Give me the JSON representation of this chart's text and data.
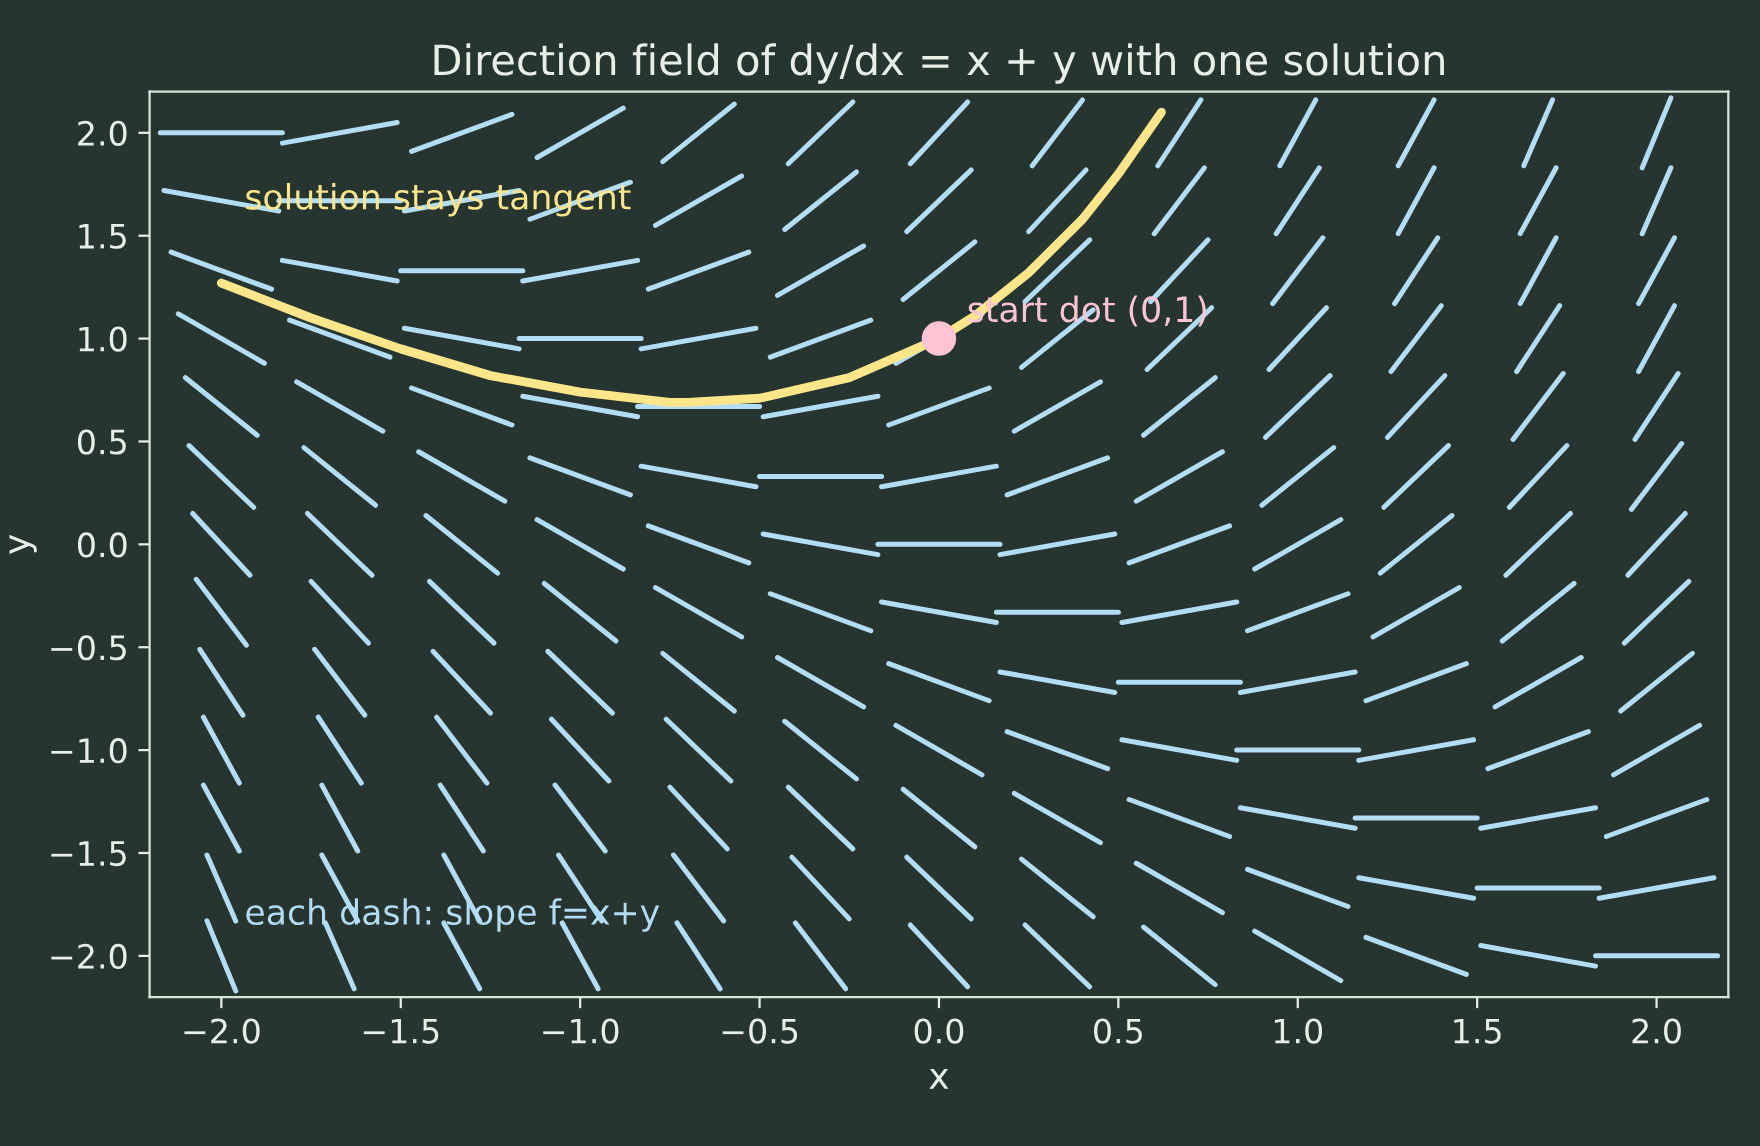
{
  "chart_data": {
    "type": "line",
    "title": "Direction field of dy/dx = x + y with one solution",
    "xlabel": "x",
    "ylabel": "y",
    "xlim": [
      -2.2,
      2.2
    ],
    "ylim": [
      -2.2,
      2.2
    ],
    "xticks": [
      {
        "value": -2,
        "label": "−2.0"
      },
      {
        "value": -1.5,
        "label": "−1.5"
      },
      {
        "value": -1,
        "label": "−1.0"
      },
      {
        "value": -0.5,
        "label": "−0.5"
      },
      {
        "value": 0,
        "label": "0.0"
      },
      {
        "value": 0.5,
        "label": "0.5"
      },
      {
        "value": 1,
        "label": "1.0"
      },
      {
        "value": 1.5,
        "label": "1.5"
      },
      {
        "value": 2,
        "label": "2.0"
      }
    ],
    "yticks": [
      {
        "value": -2,
        "label": "−2.0"
      },
      {
        "value": -1.5,
        "label": "−1.5"
      },
      {
        "value": -1,
        "label": "−1.0"
      },
      {
        "value": -0.5,
        "label": "−0.5"
      },
      {
        "value": 0,
        "label": "0.0"
      },
      {
        "value": 0.5,
        "label": "0.5"
      },
      {
        "value": 1,
        "label": "1.0"
      },
      {
        "value": 1.5,
        "label": "1.5"
      },
      {
        "value": 2,
        "label": "2.0"
      }
    ],
    "grid": false,
    "legend": false,
    "series": [
      {
        "color": "#b3dcf5",
        "x": [
          -2.04,
          -1.96
        ],
        "values": [
          -1.83,
          -2.17
        ]
      },
      {
        "color": "#b3dcf5",
        "x": [
          -2.04,
          -1.96
        ],
        "values": [
          -1.51,
          -1.83
        ]
      },
      {
        "color": "#b3dcf5",
        "x": [
          -2.05,
          -1.95
        ],
        "values": [
          -1.17,
          -1.49
        ]
      },
      {
        "color": "#b3dcf5",
        "x": [
          -2.05,
          -1.95
        ],
        "values": [
          -0.84,
          -1.16
        ]
      },
      {
        "color": "#b3dcf5",
        "x": [
          -2.06,
          -1.94
        ],
        "values": [
          -0.51,
          -0.83
        ]
      },
      {
        "color": "#b3dcf5",
        "x": [
          -2.07,
          -1.93
        ],
        "values": [
          -0.17,
          -0.49
        ]
      },
      {
        "color": "#b3dcf5",
        "x": [
          -2.08,
          -1.92
        ],
        "values": [
          0.15,
          -0.15
        ]
      },
      {
        "color": "#b3dcf5",
        "x": [
          -2.09,
          -1.91
        ],
        "values": [
          0.48,
          0.18
        ]
      },
      {
        "color": "#b3dcf5",
        "x": [
          -2.1,
          -1.9
        ],
        "values": [
          0.81,
          0.53
        ]
      },
      {
        "color": "#b3dcf5",
        "x": [
          -2.12,
          -1.88
        ],
        "values": [
          1.12,
          0.88
        ]
      },
      {
        "color": "#b3dcf5",
        "x": [
          -2.14,
          -1.86
        ],
        "values": [
          1.42,
          1.24
        ]
      },
      {
        "color": "#b3dcf5",
        "x": [
          -2.16,
          -1.84
        ],
        "values": [
          1.72,
          1.62
        ]
      },
      {
        "color": "#b3dcf5",
        "x": [
          -2.17,
          -1.83
        ],
        "values": [
          2,
          2
        ]
      },
      {
        "color": "#b3dcf5",
        "x": [
          -1.71,
          -1.63
        ],
        "values": [
          -1.84,
          -2.16
        ]
      },
      {
        "color": "#b3dcf5",
        "x": [
          -1.72,
          -1.62
        ],
        "values": [
          -1.51,
          -1.83
        ]
      },
      {
        "color": "#b3dcf5",
        "x": [
          -1.72,
          -1.62
        ],
        "values": [
          -1.17,
          -1.49
        ]
      },
      {
        "color": "#b3dcf5",
        "x": [
          -1.73,
          -1.61
        ],
        "values": [
          -0.84,
          -1.16
        ]
      },
      {
        "color": "#b3dcf5",
        "x": [
          -1.74,
          -1.6
        ],
        "values": [
          -0.51,
          -0.83
        ]
      },
      {
        "color": "#b3dcf5",
        "x": [
          -1.75,
          -1.59
        ],
        "values": [
          -0.18,
          -0.48
        ]
      },
      {
        "color": "#b3dcf5",
        "x": [
          -1.76,
          -1.58
        ],
        "values": [
          0.15,
          -0.15
        ]
      },
      {
        "color": "#b3dcf5",
        "x": [
          -1.77,
          -1.57
        ],
        "values": [
          0.47,
          0.19
        ]
      },
      {
        "color": "#b3dcf5",
        "x": [
          -1.79,
          -1.55
        ],
        "values": [
          0.79,
          0.55
        ]
      },
      {
        "color": "#b3dcf5",
        "x": [
          -1.81,
          -1.53
        ],
        "values": [
          1.09,
          0.91
        ]
      },
      {
        "color": "#b3dcf5",
        "x": [
          -1.83,
          -1.51
        ],
        "values": [
          1.38,
          1.28
        ]
      },
      {
        "color": "#b3dcf5",
        "x": [
          -1.84,
          -1.5
        ],
        "values": [
          1.67,
          1.67
        ]
      },
      {
        "color": "#b3dcf5",
        "x": [
          -1.83,
          -1.51
        ],
        "values": [
          1.95,
          2.05
        ]
      },
      {
        "color": "#b3dcf5",
        "x": [
          -1.38,
          -1.28
        ],
        "values": [
          -1.84,
          -2.16
        ]
      },
      {
        "color": "#b3dcf5",
        "x": [
          -1.38,
          -1.28
        ],
        "values": [
          -1.51,
          -1.83
        ]
      },
      {
        "color": "#b3dcf5",
        "x": [
          -1.39,
          -1.27
        ],
        "values": [
          -1.17,
          -1.49
        ]
      },
      {
        "color": "#b3dcf5",
        "x": [
          -1.4,
          -1.26
        ],
        "values": [
          -0.84,
          -1.16
        ]
      },
      {
        "color": "#b3dcf5",
        "x": [
          -1.41,
          -1.25
        ],
        "values": [
          -0.52,
          -0.82
        ]
      },
      {
        "color": "#b3dcf5",
        "x": [
          -1.42,
          -1.24
        ],
        "values": [
          -0.18,
          -0.48
        ]
      },
      {
        "color": "#b3dcf5",
        "x": [
          -1.43,
          -1.23
        ],
        "values": [
          0.14,
          -0.14
        ]
      },
      {
        "color": "#b3dcf5",
        "x": [
          -1.45,
          -1.21
        ],
        "values": [
          0.45,
          0.21
        ]
      },
      {
        "color": "#b3dcf5",
        "x": [
          -1.47,
          -1.19
        ],
        "values": [
          0.76,
          0.58
        ]
      },
      {
        "color": "#b3dcf5",
        "x": [
          -1.49,
          -1.17
        ],
        "values": [
          1.05,
          0.95
        ]
      },
      {
        "color": "#b3dcf5",
        "x": [
          -1.5,
          -1.16
        ],
        "values": [
          1.33,
          1.33
        ]
      },
      {
        "color": "#b3dcf5",
        "x": [
          -1.49,
          -1.17
        ],
        "values": [
          1.62,
          1.72
        ]
      },
      {
        "color": "#b3dcf5",
        "x": [
          -1.47,
          -1.19
        ],
        "values": [
          1.91,
          2.09
        ]
      },
      {
        "color": "#b3dcf5",
        "x": [
          -1.05,
          -0.95
        ],
        "values": [
          -1.84,
          -2.16
        ]
      },
      {
        "color": "#b3dcf5",
        "x": [
          -1.06,
          -0.94
        ],
        "values": [
          -1.51,
          -1.83
        ]
      },
      {
        "color": "#b3dcf5",
        "x": [
          -1.07,
          -0.93
        ],
        "values": [
          -1.17,
          -1.49
        ]
      },
      {
        "color": "#b3dcf5",
        "x": [
          -1.08,
          -0.92
        ],
        "values": [
          -0.85,
          -1.15
        ]
      },
      {
        "color": "#b3dcf5",
        "x": [
          -1.09,
          -0.91
        ],
        "values": [
          -0.52,
          -0.82
        ]
      },
      {
        "color": "#b3dcf5",
        "x": [
          -1.1,
          -0.9
        ],
        "values": [
          -0.19,
          -0.47
        ]
      },
      {
        "color": "#b3dcf5",
        "x": [
          -1.12,
          -0.88
        ],
        "values": [
          0.12,
          -0.12
        ]
      },
      {
        "color": "#b3dcf5",
        "x": [
          -1.14,
          -0.86
        ],
        "values": [
          0.42,
          0.24
        ]
      },
      {
        "color": "#b3dcf5",
        "x": [
          -1.16,
          -0.84
        ],
        "values": [
          0.72,
          0.62
        ]
      },
      {
        "color": "#b3dcf5",
        "x": [
          -1.17,
          -0.83
        ],
        "values": [
          1,
          1
        ]
      },
      {
        "color": "#b3dcf5",
        "x": [
          -1.16,
          -0.84
        ],
        "values": [
          1.28,
          1.38
        ]
      },
      {
        "color": "#b3dcf5",
        "x": [
          -1.14,
          -0.86
        ],
        "values": [
          1.58,
          1.76
        ]
      },
      {
        "color": "#b3dcf5",
        "x": [
          -1.12,
          -0.88
        ],
        "values": [
          1.88,
          2.12
        ]
      },
      {
        "color": "#b3dcf5",
        "x": [
          -0.73,
          -0.61
        ],
        "values": [
          -1.84,
          -2.16
        ]
      },
      {
        "color": "#b3dcf5",
        "x": [
          -0.74,
          -0.6
        ],
        "values": [
          -1.51,
          -1.83
        ]
      },
      {
        "color": "#b3dcf5",
        "x": [
          -0.75,
          -0.59
        ],
        "values": [
          -1.18,
          -1.48
        ]
      },
      {
        "color": "#b3dcf5",
        "x": [
          -0.76,
          -0.58
        ],
        "values": [
          -0.85,
          -1.15
        ]
      },
      {
        "color": "#b3dcf5",
        "x": [
          -0.77,
          -0.57
        ],
        "values": [
          -0.53,
          -0.81
        ]
      },
      {
        "color": "#b3dcf5",
        "x": [
          -0.79,
          -0.55
        ],
        "values": [
          -0.21,
          -0.45
        ]
      },
      {
        "color": "#b3dcf5",
        "x": [
          -0.81,
          -0.53
        ],
        "values": [
          0.09,
          -0.09
        ]
      },
      {
        "color": "#b3dcf5",
        "x": [
          -0.83,
          -0.51
        ],
        "values": [
          0.38,
          0.28
        ]
      },
      {
        "color": "#b3dcf5",
        "x": [
          -0.84,
          -0.5
        ],
        "values": [
          0.67,
          0.67
        ]
      },
      {
        "color": "#b3dcf5",
        "x": [
          -0.83,
          -0.51
        ],
        "values": [
          0.95,
          1.05
        ]
      },
      {
        "color": "#b3dcf5",
        "x": [
          -0.81,
          -0.53
        ],
        "values": [
          1.24,
          1.42
        ]
      },
      {
        "color": "#b3dcf5",
        "x": [
          -0.79,
          -0.55
        ],
        "values": [
          1.55,
          1.79
        ]
      },
      {
        "color": "#b3dcf5",
        "x": [
          -0.77,
          -0.57
        ],
        "values": [
          1.86,
          2.14
        ]
      },
      {
        "color": "#b3dcf5",
        "x": [
          -0.4,
          -0.26
        ],
        "values": [
          -1.84,
          -2.16
        ]
      },
      {
        "color": "#b3dcf5",
        "x": [
          -0.41,
          -0.25
        ],
        "values": [
          -1.52,
          -1.82
        ]
      },
      {
        "color": "#b3dcf5",
        "x": [
          -0.42,
          -0.24
        ],
        "values": [
          -1.18,
          -1.48
        ]
      },
      {
        "color": "#b3dcf5",
        "x": [
          -0.43,
          -0.23
        ],
        "values": [
          -0.86,
          -1.14
        ]
      },
      {
        "color": "#b3dcf5",
        "x": [
          -0.45,
          -0.21
        ],
        "values": [
          -0.55,
          -0.79
        ]
      },
      {
        "color": "#b3dcf5",
        "x": [
          -0.47,
          -0.19
        ],
        "values": [
          -0.24,
          -0.42
        ]
      },
      {
        "color": "#b3dcf5",
        "x": [
          -0.49,
          -0.17
        ],
        "values": [
          0.05,
          -0.05
        ]
      },
      {
        "color": "#b3dcf5",
        "x": [
          -0.5,
          -0.16
        ],
        "values": [
          0.33,
          0.33
        ]
      },
      {
        "color": "#b3dcf5",
        "x": [
          -0.49,
          -0.17
        ],
        "values": [
          0.62,
          0.72
        ]
      },
      {
        "color": "#b3dcf5",
        "x": [
          -0.47,
          -0.19
        ],
        "values": [
          0.91,
          1.09
        ]
      },
      {
        "color": "#b3dcf5",
        "x": [
          -0.45,
          -0.21
        ],
        "values": [
          1.21,
          1.45
        ]
      },
      {
        "color": "#b3dcf5",
        "x": [
          -0.43,
          -0.23
        ],
        "values": [
          1.53,
          1.81
        ]
      },
      {
        "color": "#b3dcf5",
        "x": [
          -0.42,
          -0.24
        ],
        "values": [
          1.85,
          2.15
        ]
      },
      {
        "color": "#b3dcf5",
        "x": [
          -0.08,
          0.08
        ],
        "values": [
          -1.85,
          -2.15
        ]
      },
      {
        "color": "#b3dcf5",
        "x": [
          -0.09,
          0.09
        ],
        "values": [
          -1.52,
          -1.82
        ]
      },
      {
        "color": "#b3dcf5",
        "x": [
          -0.1,
          0.1
        ],
        "values": [
          -1.19,
          -1.47
        ]
      },
      {
        "color": "#b3dcf5",
        "x": [
          -0.12,
          0.12
        ],
        "values": [
          -0.88,
          -1.12
        ]
      },
      {
        "color": "#b3dcf5",
        "x": [
          -0.14,
          0.14
        ],
        "values": [
          -0.58,
          -0.76
        ]
      },
      {
        "color": "#b3dcf5",
        "x": [
          -0.16,
          0.16
        ],
        "values": [
          -0.28,
          -0.38
        ]
      },
      {
        "color": "#b3dcf5",
        "x": [
          -0.17,
          0.17
        ],
        "values": [
          0,
          0
        ]
      },
      {
        "color": "#b3dcf5",
        "x": [
          -0.16,
          0.16
        ],
        "values": [
          0.28,
          0.38
        ]
      },
      {
        "color": "#b3dcf5",
        "x": [
          -0.14,
          0.14
        ],
        "values": [
          0.58,
          0.76
        ]
      },
      {
        "color": "#b3dcf5",
        "x": [
          -0.12,
          0.12
        ],
        "values": [
          0.88,
          1.12
        ]
      },
      {
        "color": "#b3dcf5",
        "x": [
          -0.1,
          0.1
        ],
        "values": [
          1.19,
          1.47
        ]
      },
      {
        "color": "#b3dcf5",
        "x": [
          -0.09,
          0.09
        ],
        "values": [
          1.52,
          1.82
        ]
      },
      {
        "color": "#b3dcf5",
        "x": [
          -0.08,
          0.08
        ],
        "values": [
          1.85,
          2.15
        ]
      },
      {
        "color": "#b3dcf5",
        "x": [
          0.24,
          0.42
        ],
        "values": [
          -1.85,
          -2.15
        ]
      },
      {
        "color": "#b3dcf5",
        "x": [
          0.23,
          0.43
        ],
        "values": [
          -1.53,
          -1.81
        ]
      },
      {
        "color": "#b3dcf5",
        "x": [
          0.21,
          0.45
        ],
        "values": [
          -1.21,
          -1.45
        ]
      },
      {
        "color": "#b3dcf5",
        "x": [
          0.19,
          0.47
        ],
        "values": [
          -0.91,
          -1.09
        ]
      },
      {
        "color": "#b3dcf5",
        "x": [
          0.17,
          0.49
        ],
        "values": [
          -0.62,
          -0.72
        ]
      },
      {
        "color": "#b3dcf5",
        "x": [
          0.16,
          0.5
        ],
        "values": [
          -0.33,
          -0.33
        ]
      },
      {
        "color": "#b3dcf5",
        "x": [
          0.17,
          0.49
        ],
        "values": [
          -0.05,
          0.05
        ]
      },
      {
        "color": "#b3dcf5",
        "x": [
          0.19,
          0.47
        ],
        "values": [
          0.24,
          0.42
        ]
      },
      {
        "color": "#b3dcf5",
        "x": [
          0.21,
          0.45
        ],
        "values": [
          0.55,
          0.79
        ]
      },
      {
        "color": "#b3dcf5",
        "x": [
          0.23,
          0.43
        ],
        "values": [
          0.86,
          1.14
        ]
      },
      {
        "color": "#b3dcf5",
        "x": [
          0.24,
          0.42
        ],
        "values": [
          1.18,
          1.48
        ]
      },
      {
        "color": "#b3dcf5",
        "x": [
          0.25,
          0.41
        ],
        "values": [
          1.52,
          1.82
        ]
      },
      {
        "color": "#b3dcf5",
        "x": [
          0.26,
          0.4
        ],
        "values": [
          1.84,
          2.16
        ]
      },
      {
        "color": "#b3dcf5",
        "x": [
          0.57,
          0.77
        ],
        "values": [
          -1.86,
          -2.14
        ]
      },
      {
        "color": "#b3dcf5",
        "x": [
          0.55,
          0.79
        ],
        "values": [
          -1.55,
          -1.79
        ]
      },
      {
        "color": "#b3dcf5",
        "x": [
          0.53,
          0.81
        ],
        "values": [
          -1.24,
          -1.42
        ]
      },
      {
        "color": "#b3dcf5",
        "x": [
          0.51,
          0.83
        ],
        "values": [
          -0.95,
          -1.05
        ]
      },
      {
        "color": "#b3dcf5",
        "x": [
          0.5,
          0.84
        ],
        "values": [
          -0.67,
          -0.67
        ]
      },
      {
        "color": "#b3dcf5",
        "x": [
          0.51,
          0.83
        ],
        "values": [
          -0.38,
          -0.28
        ]
      },
      {
        "color": "#b3dcf5",
        "x": [
          0.53,
          0.81
        ],
        "values": [
          -0.09,
          0.09
        ]
      },
      {
        "color": "#b3dcf5",
        "x": [
          0.55,
          0.79
        ],
        "values": [
          0.21,
          0.45
        ]
      },
      {
        "color": "#b3dcf5",
        "x": [
          0.57,
          0.77
        ],
        "values": [
          0.53,
          0.81
        ]
      },
      {
        "color": "#b3dcf5",
        "x": [
          0.58,
          0.76
        ],
        "values": [
          0.85,
          1.15
        ]
      },
      {
        "color": "#b3dcf5",
        "x": [
          0.59,
          0.75
        ],
        "values": [
          1.18,
          1.48
        ]
      },
      {
        "color": "#b3dcf5",
        "x": [
          0.6,
          0.74
        ],
        "values": [
          1.51,
          1.83
        ]
      },
      {
        "color": "#b3dcf5",
        "x": [
          0.61,
          0.73
        ],
        "values": [
          1.84,
          2.16
        ]
      },
      {
        "color": "#b3dcf5",
        "x": [
          0.88,
          1.12
        ],
        "values": [
          -1.88,
          -2.12
        ]
      },
      {
        "color": "#b3dcf5",
        "x": [
          0.86,
          1.14
        ],
        "values": [
          -1.58,
          -1.76
        ]
      },
      {
        "color": "#b3dcf5",
        "x": [
          0.84,
          1.16
        ],
        "values": [
          -1.28,
          -1.38
        ]
      },
      {
        "color": "#b3dcf5",
        "x": [
          0.83,
          1.17
        ],
        "values": [
          -1,
          -1
        ]
      },
      {
        "color": "#b3dcf5",
        "x": [
          0.84,
          1.16
        ],
        "values": [
          -0.72,
          -0.62
        ]
      },
      {
        "color": "#b3dcf5",
        "x": [
          0.86,
          1.14
        ],
        "values": [
          -0.42,
          -0.24
        ]
      },
      {
        "color": "#b3dcf5",
        "x": [
          0.88,
          1.12
        ],
        "values": [
          -0.12,
          0.12
        ]
      },
      {
        "color": "#b3dcf5",
        "x": [
          0.9,
          1.1
        ],
        "values": [
          0.19,
          0.47
        ]
      },
      {
        "color": "#b3dcf5",
        "x": [
          0.91,
          1.09
        ],
        "values": [
          0.52,
          0.82
        ]
      },
      {
        "color": "#b3dcf5",
        "x": [
          0.92,
          1.08
        ],
        "values": [
          0.85,
          1.15
        ]
      },
      {
        "color": "#b3dcf5",
        "x": [
          0.93,
          1.07
        ],
        "values": [
          1.17,
          1.49
        ]
      },
      {
        "color": "#b3dcf5",
        "x": [
          0.94,
          1.06
        ],
        "values": [
          1.51,
          1.83
        ]
      },
      {
        "color": "#b3dcf5",
        "x": [
          0.95,
          1.05
        ],
        "values": [
          1.84,
          2.16
        ]
      },
      {
        "color": "#b3dcf5",
        "x": [
          1.19,
          1.47
        ],
        "values": [
          -1.91,
          -2.09
        ]
      },
      {
        "color": "#b3dcf5",
        "x": [
          1.17,
          1.49
        ],
        "values": [
          -1.62,
          -1.72
        ]
      },
      {
        "color": "#b3dcf5",
        "x": [
          1.16,
          1.5
        ],
        "values": [
          -1.33,
          -1.33
        ]
      },
      {
        "color": "#b3dcf5",
        "x": [
          1.17,
          1.49
        ],
        "values": [
          -1.05,
          -0.95
        ]
      },
      {
        "color": "#b3dcf5",
        "x": [
          1.19,
          1.47
        ],
        "values": [
          -0.76,
          -0.58
        ]
      },
      {
        "color": "#b3dcf5",
        "x": [
          1.21,
          1.45
        ],
        "values": [
          -0.45,
          -0.21
        ]
      },
      {
        "color": "#b3dcf5",
        "x": [
          1.23,
          1.43
        ],
        "values": [
          -0.14,
          0.14
        ]
      },
      {
        "color": "#b3dcf5",
        "x": [
          1.24,
          1.42
        ],
        "values": [
          0.18,
          0.48
        ]
      },
      {
        "color": "#b3dcf5",
        "x": [
          1.25,
          1.41
        ],
        "values": [
          0.52,
          0.82
        ]
      },
      {
        "color": "#b3dcf5",
        "x": [
          1.26,
          1.4
        ],
        "values": [
          0.84,
          1.16
        ]
      },
      {
        "color": "#b3dcf5",
        "x": [
          1.27,
          1.39
        ],
        "values": [
          1.17,
          1.49
        ]
      },
      {
        "color": "#b3dcf5",
        "x": [
          1.28,
          1.38
        ],
        "values": [
          1.51,
          1.83
        ]
      },
      {
        "color": "#b3dcf5",
        "x": [
          1.28,
          1.38
        ],
        "values": [
          1.84,
          2.16
        ]
      },
      {
        "color": "#b3dcf5",
        "x": [
          1.51,
          1.83
        ],
        "values": [
          -1.95,
          -2.05
        ]
      },
      {
        "color": "#b3dcf5",
        "x": [
          1.5,
          1.84
        ],
        "values": [
          -1.67,
          -1.67
        ]
      },
      {
        "color": "#b3dcf5",
        "x": [
          1.51,
          1.83
        ],
        "values": [
          -1.38,
          -1.28
        ]
      },
      {
        "color": "#b3dcf5",
        "x": [
          1.53,
          1.81
        ],
        "values": [
          -1.09,
          -0.91
        ]
      },
      {
        "color": "#b3dcf5",
        "x": [
          1.55,
          1.79
        ],
        "values": [
          -0.79,
          -0.55
        ]
      },
      {
        "color": "#b3dcf5",
        "x": [
          1.57,
          1.77
        ],
        "values": [
          -0.47,
          -0.19
        ]
      },
      {
        "color": "#b3dcf5",
        "x": [
          1.58,
          1.76
        ],
        "values": [
          -0.15,
          0.15
        ]
      },
      {
        "color": "#b3dcf5",
        "x": [
          1.59,
          1.75
        ],
        "values": [
          0.18,
          0.48
        ]
      },
      {
        "color": "#b3dcf5",
        "x": [
          1.6,
          1.74
        ],
        "values": [
          0.51,
          0.83
        ]
      },
      {
        "color": "#b3dcf5",
        "x": [
          1.61,
          1.73
        ],
        "values": [
          0.84,
          1.16
        ]
      },
      {
        "color": "#b3dcf5",
        "x": [
          1.62,
          1.72
        ],
        "values": [
          1.17,
          1.49
        ]
      },
      {
        "color": "#b3dcf5",
        "x": [
          1.62,
          1.72
        ],
        "values": [
          1.51,
          1.83
        ]
      },
      {
        "color": "#b3dcf5",
        "x": [
          1.63,
          1.71
        ],
        "values": [
          1.84,
          2.16
        ]
      },
      {
        "color": "#b3dcf5",
        "x": [
          1.83,
          2.17
        ],
        "values": [
          -2,
          -2
        ]
      },
      {
        "color": "#b3dcf5",
        "x": [
          1.84,
          2.16
        ],
        "values": [
          -1.72,
          -1.62
        ]
      },
      {
        "color": "#b3dcf5",
        "x": [
          1.86,
          2.14
        ],
        "values": [
          -1.42,
          -1.24
        ]
      },
      {
        "color": "#b3dcf5",
        "x": [
          1.88,
          2.12
        ],
        "values": [
          -1.12,
          -0.88
        ]
      },
      {
        "color": "#b3dcf5",
        "x": [
          1.9,
          2.1
        ],
        "values": [
          -0.81,
          -0.53
        ]
      },
      {
        "color": "#b3dcf5",
        "x": [
          1.91,
          2.09
        ],
        "values": [
          -0.48,
          -0.18
        ]
      },
      {
        "color": "#b3dcf5",
        "x": [
          1.92,
          2.08
        ],
        "values": [
          -0.15,
          0.15
        ]
      },
      {
        "color": "#b3dcf5",
        "x": [
          1.93,
          2.07
        ],
        "values": [
          0.17,
          0.49
        ]
      },
      {
        "color": "#b3dcf5",
        "x": [
          1.94,
          2.06
        ],
        "values": [
          0.51,
          0.83
        ]
      },
      {
        "color": "#b3dcf5",
        "x": [
          1.95,
          2.05
        ],
        "values": [
          0.84,
          1.16
        ]
      },
      {
        "color": "#b3dcf5",
        "x": [
          1.95,
          2.05
        ],
        "values": [
          1.17,
          1.49
        ]
      },
      {
        "color": "#b3dcf5",
        "x": [
          1.96,
          2.04
        ],
        "values": [
          1.51,
          1.83
        ]
      },
      {
        "color": "#b3dcf5",
        "x": [
          1.96,
          2.04
        ],
        "values": [
          1.83,
          2.17
        ]
      },
      {
        "color": "#fde68a",
        "x": [
          -2,
          -1.75,
          -1.5,
          -1.25,
          -1,
          -0.75,
          -0.7,
          -0.5,
          -0.25,
          0,
          0.1,
          0.25,
          0.4,
          0.5,
          0.62
        ],
        "values": [
          1.27,
          1.1,
          0.95,
          0.82,
          0.74,
          0.69,
          0.69,
          0.71,
          0.81,
          1,
          1.11,
          1.32,
          1.58,
          1.8,
          2.1
        ]
      },
      {
        "type": "scatter",
        "color": "#ffc4d4",
        "marker": "circle",
        "x": [
          0
        ],
        "values": [
          1
        ]
      }
    ],
    "annotations": [
      "solution stays tangent",
      {
        "text": "start dot (0,1)",
        "x": 0,
        "y": 1
      },
      "each dash: slope f=x+y"
    ]
  }
}
